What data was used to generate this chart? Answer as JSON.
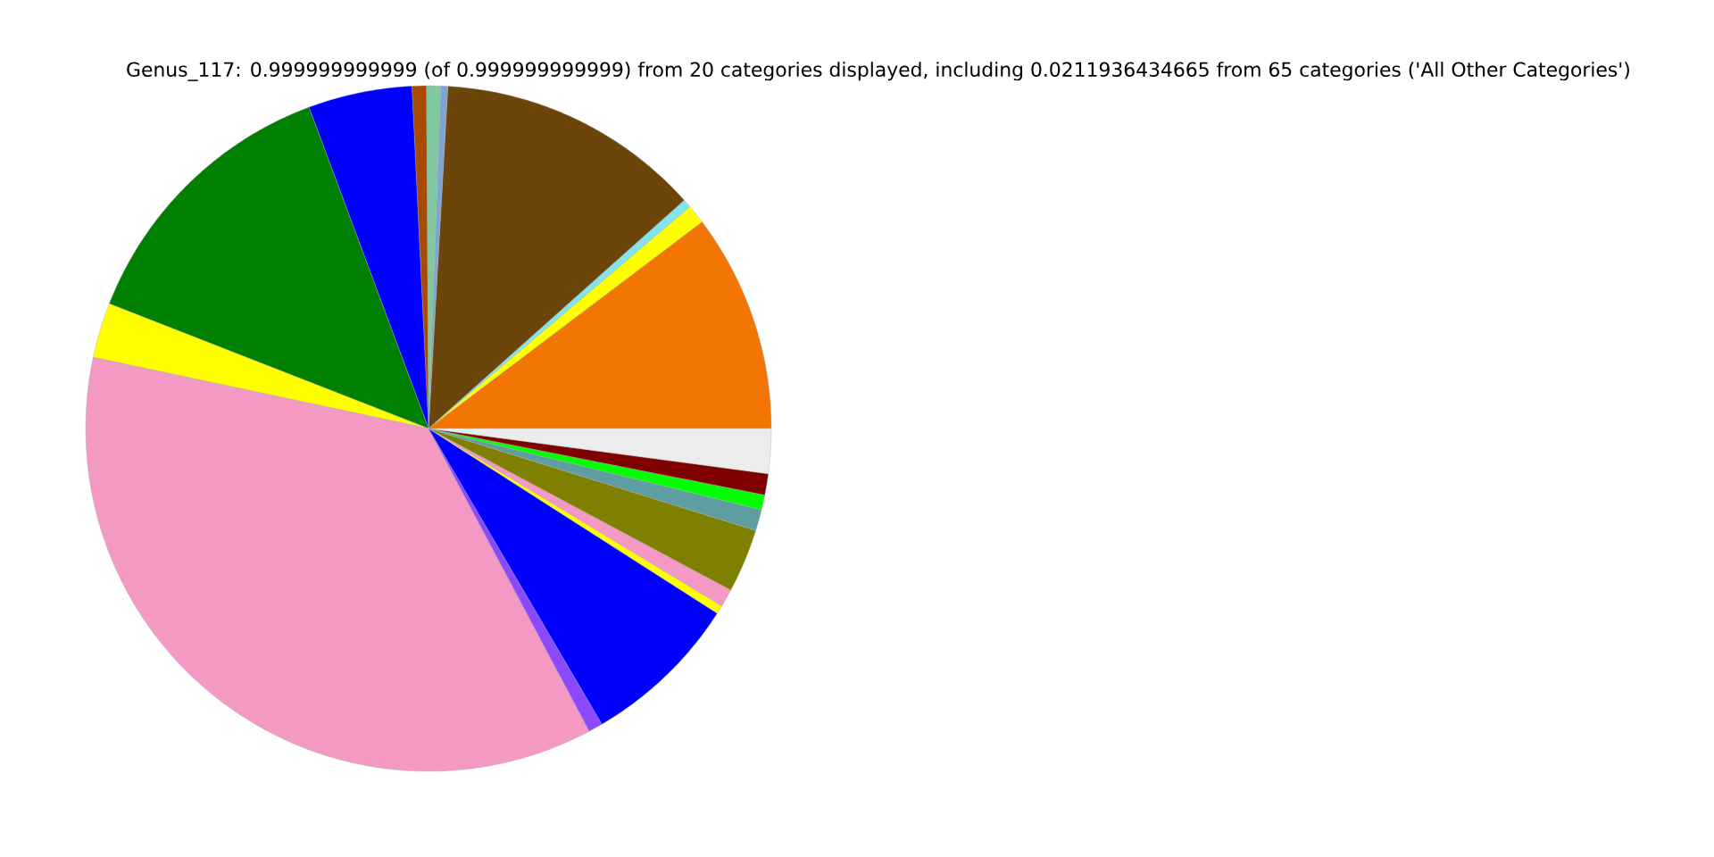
{
  "chart_data": {
    "type": "pie",
    "title": "Genus_117: 0.999999999999 (of 0.999999999999) from 20 categories displayed, including 0.0211936434665 from 65 categories ('All Other Categories')",
    "categories": [
      null,
      null,
      null,
      null,
      null,
      null,
      null,
      null,
      null,
      null,
      null,
      null,
      null,
      null,
      null,
      null,
      null,
      null,
      null,
      null
    ],
    "values": [
      10.3,
      0.9,
      0.4,
      12.5,
      0.33,
      0.67,
      0.67,
      4.9,
      13.4,
      2.6,
      36.1,
      0.67,
      7.5,
      0.4,
      0.85,
      3.0,
      1.0,
      0.7,
      1.0,
      2.11
    ],
    "colors": [
      "#f37504",
      "#ffff00",
      "#80e5ef",
      "#6b450a",
      "#80a5d5",
      "#80c8a0",
      "#a84a00",
      "#0000ff",
      "#008000",
      "#ffff00",
      "#f499c4",
      "#8c48ff",
      "#0000ff",
      "#ffff00",
      "#f499c4",
      "#808000",
      "#5f9ea0",
      "#00ff00",
      "#800000",
      "#ececec"
    ]
  }
}
